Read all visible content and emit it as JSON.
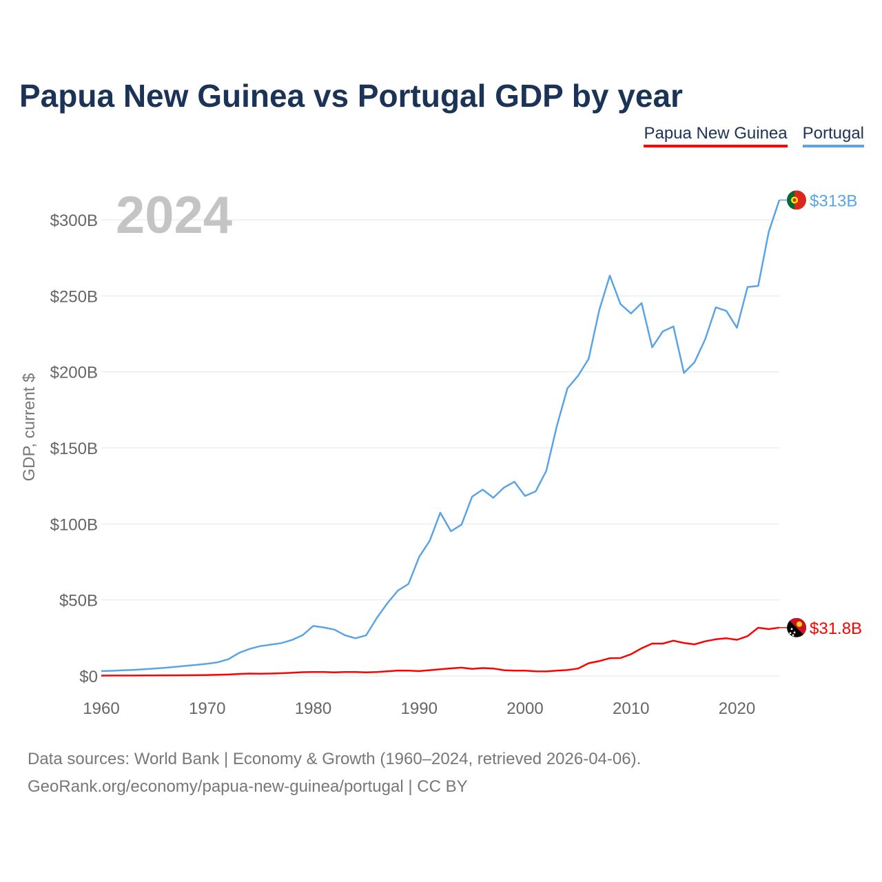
{
  "title": "Papua New Guinea vs Portugal GDP by year",
  "legend": [
    {
      "label": "Papua New Guinea",
      "color": "#ff0000"
    },
    {
      "label": "Portugal",
      "color": "#5aa4e6"
    }
  ],
  "year_label": "2024",
  "source_lines": [
    "Data sources: World Bank | Economy & Growth (1960–2024, retrieved 2026-04-06).",
    "GeoRank.org/economy/papua-new-guinea/portugal | CC BY"
  ],
  "chart_data": {
    "type": "line",
    "title": "Papua New Guinea vs Portugal GDP by year",
    "xlabel": "",
    "ylabel": "GDP, current $",
    "xlim": [
      1960,
      2024
    ],
    "ylim": [
      0,
      300
    ],
    "y_unit": "billions of current US$",
    "x_ticks": [
      1960,
      1970,
      1980,
      1990,
      2000,
      2010,
      2020
    ],
    "y_ticks": [
      {
        "value": 0,
        "label": "$0"
      },
      {
        "value": 50,
        "label": "$50B"
      },
      {
        "value": 100,
        "label": "$100B"
      },
      {
        "value": 150,
        "label": "$150B"
      },
      {
        "value": 200,
        "label": "$200B"
      },
      {
        "value": 250,
        "label": "$250B"
      },
      {
        "value": 300,
        "label": "$300B"
      }
    ],
    "grid": true,
    "series": [
      {
        "name": "Portugal",
        "color": "#5aa4e6",
        "end_label": "$313B",
        "flag": "portugal-flag",
        "x": [
          1960,
          1961,
          1962,
          1963,
          1964,
          1965,
          1966,
          1967,
          1968,
          1969,
          1970,
          1971,
          1972,
          1973,
          1974,
          1975,
          1976,
          1977,
          1978,
          1979,
          1980,
          1981,
          1982,
          1983,
          1984,
          1985,
          1986,
          1987,
          1988,
          1989,
          1990,
          1991,
          1992,
          1993,
          1994,
          1995,
          1996,
          1997,
          1998,
          1999,
          2000,
          2001,
          2002,
          2003,
          2004,
          2005,
          2006,
          2007,
          2008,
          2009,
          2010,
          2011,
          2012,
          2013,
          2014,
          2015,
          2016,
          2017,
          2018,
          2019,
          2020,
          2021,
          2022,
          2023,
          2024
        ],
        "values": [
          3.2,
          3.4,
          3.7,
          4.0,
          4.4,
          4.9,
          5.4,
          6.0,
          6.7,
          7.3,
          8.0,
          9.0,
          11.0,
          15.2,
          17.8,
          19.6,
          20.6,
          21.6,
          23.7,
          26.8,
          32.9,
          31.9,
          30.5,
          26.8,
          24.8,
          26.8,
          38.1,
          47.8,
          56.2,
          60.6,
          78.3,
          88.9,
          107.4,
          95.2,
          99.5,
          117.9,
          122.6,
          117.2,
          123.9,
          127.7,
          118.4,
          121.4,
          134.9,
          164.4,
          189.2,
          197.4,
          208.6,
          240.5,
          263.3,
          244.6,
          238.4,
          245.2,
          216.1,
          226.6,
          229.9,
          199.3,
          206.4,
          221.4,
          242.4,
          240.1,
          229.0,
          255.8,
          256.5,
          292.0,
          313.0
        ]
      },
      {
        "name": "Papua New Guinea",
        "color": "#ff0000",
        "end_label": "$31.8B",
        "flag": "papua-new-guinea-flag",
        "x": [
          1960,
          1961,
          1962,
          1963,
          1964,
          1965,
          1966,
          1967,
          1968,
          1969,
          1970,
          1971,
          1972,
          1973,
          1974,
          1975,
          1976,
          1977,
          1978,
          1979,
          1980,
          1981,
          1982,
          1983,
          1984,
          1985,
          1986,
          1987,
          1988,
          1989,
          1990,
          1991,
          1992,
          1993,
          1994,
          1995,
          1996,
          1997,
          1998,
          1999,
          2000,
          2001,
          2002,
          2003,
          2004,
          2005,
          2006,
          2007,
          2008,
          2009,
          2010,
          2011,
          2012,
          2013,
          2014,
          2015,
          2016,
          2017,
          2018,
          2019,
          2020,
          2021,
          2022,
          2023,
          2024
        ],
        "values": [
          0.23,
          0.25,
          0.27,
          0.29,
          0.32,
          0.35,
          0.39,
          0.43,
          0.47,
          0.51,
          0.65,
          0.75,
          0.93,
          1.3,
          1.6,
          1.5,
          1.6,
          1.8,
          2.1,
          2.5,
          2.6,
          2.6,
          2.4,
          2.6,
          2.6,
          2.4,
          2.6,
          3.1,
          3.6,
          3.5,
          3.2,
          3.8,
          4.4,
          5.0,
          5.5,
          4.6,
          5.2,
          4.9,
          3.8,
          3.5,
          3.5,
          3.1,
          3.0,
          3.5,
          3.9,
          4.9,
          8.4,
          9.8,
          11.7,
          11.8,
          14.3,
          18.2,
          21.3,
          21.3,
          23.2,
          21.7,
          20.8,
          22.8,
          24.1,
          24.8,
          23.8,
          26.2,
          31.7,
          30.8,
          31.8
        ]
      }
    ]
  }
}
